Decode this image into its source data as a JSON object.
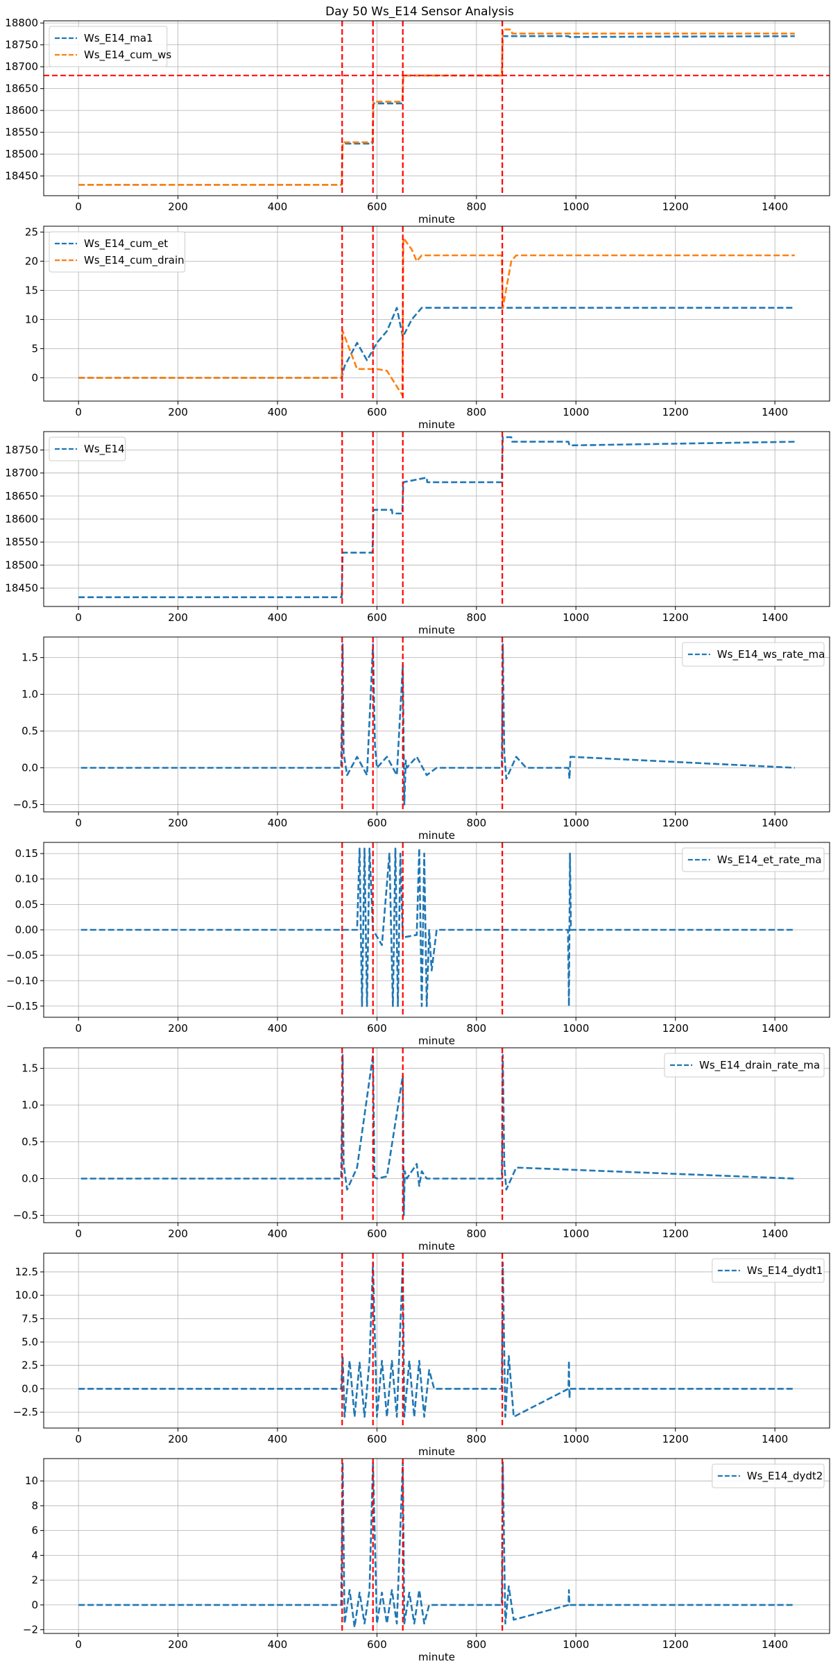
{
  "title": "Day 50 Ws_E14 Sensor Analysis",
  "colors": {
    "blue": "#1f77b4",
    "orange": "#ff7f0e",
    "red": "#ff0000",
    "grid": "#b0b0b0"
  },
  "chart_data": [
    {
      "type": "line",
      "xlabel": "minute",
      "xlim": [
        -70,
        1510
      ],
      "ylim": [
        18405,
        18805
      ],
      "xticks": [
        0,
        200,
        400,
        600,
        800,
        1000,
        1200,
        1400
      ],
      "yticks": [
        18450,
        18500,
        18550,
        18600,
        18650,
        18700,
        18750,
        18800
      ],
      "legend_position": "top-left",
      "vlines": [
        530,
        592,
        652,
        852
      ],
      "hline": 18680,
      "series": [
        {
          "name": "Ws_E14_ma1",
          "color": "blue",
          "style": "dashed",
          "x": [
            0,
            529,
            531,
            591,
            593,
            651,
            653,
            851,
            853,
            985,
            987,
            1440
          ],
          "y": [
            18430,
            18430,
            18524,
            18524,
            18616,
            18616,
            18680,
            18680,
            18770,
            18770,
            18768,
            18770
          ]
        },
        {
          "name": "Ws_E14_cum_ws",
          "color": "orange",
          "style": "dashed",
          "x": [
            0,
            529,
            531,
            591,
            593,
            651,
            653,
            851,
            853,
            870,
            872,
            1440
          ],
          "y": [
            18430,
            18430,
            18527,
            18527,
            18620,
            18620,
            18680,
            18680,
            18785,
            18785,
            18776,
            18776
          ]
        }
      ]
    },
    {
      "type": "line",
      "xlabel": "minute",
      "xlim": [
        -70,
        1510
      ],
      "ylim": [
        -4,
        26
      ],
      "xticks": [
        0,
        200,
        400,
        600,
        800,
        1000,
        1200,
        1400
      ],
      "yticks": [
        0,
        5,
        10,
        15,
        20,
        25
      ],
      "legend_position": "top-left",
      "vlines": [
        530,
        592,
        652,
        852
      ],
      "series": [
        {
          "name": "Ws_E14_cum_et",
          "color": "blue",
          "style": "dashed",
          "x": [
            0,
            529,
            535,
            560,
            580,
            600,
            620,
            640,
            652,
            670,
            690,
            700,
            720,
            850,
            860,
            985,
            990,
            1440
          ],
          "y": [
            0,
            0,
            2,
            6,
            3,
            6,
            8,
            12,
            7,
            10,
            12,
            12,
            12,
            12,
            12,
            12,
            12,
            12
          ]
        },
        {
          "name": "Ws_E14_cum_drain",
          "color": "orange",
          "style": "dashed",
          "x": [
            0,
            529,
            531,
            560,
            591,
            600,
            620,
            651,
            653,
            670,
            680,
            690,
            720,
            851,
            853,
            870,
            880,
            1440
          ],
          "y": [
            0,
            0,
            8,
            1.5,
            1.5,
            1.5,
            1.2,
            -3,
            24,
            22,
            20,
            21,
            21,
            21,
            12,
            20,
            21,
            21
          ]
        }
      ]
    },
    {
      "type": "line",
      "xlabel": "minute",
      "xlim": [
        -70,
        1510
      ],
      "ylim": [
        18410,
        18790
      ],
      "xticks": [
        0,
        200,
        400,
        600,
        800,
        1000,
        1200,
        1400
      ],
      "yticks": [
        18450,
        18500,
        18550,
        18600,
        18650,
        18700,
        18750
      ],
      "legend_position": "top-left",
      "vlines": [
        530,
        592,
        652,
        852
      ],
      "series": [
        {
          "name": "Ws_E14",
          "color": "blue",
          "style": "dashed",
          "x": [
            0,
            529,
            531,
            591,
            593,
            630,
            631,
            651,
            653,
            700,
            701,
            851,
            853,
            870,
            872,
            985,
            987,
            1440
          ],
          "y": [
            18430,
            18430,
            18527,
            18527,
            18620,
            18620,
            18612,
            18612,
            18680,
            18690,
            18680,
            18680,
            18778,
            18778,
            18768,
            18768,
            18760,
            18768
          ]
        }
      ]
    },
    {
      "type": "line",
      "xlabel": "minute",
      "xlim": [
        -70,
        1510
      ],
      "ylim": [
        -0.6,
        1.78
      ],
      "xticks": [
        0,
        200,
        400,
        600,
        800,
        1000,
        1200,
        1400
      ],
      "yticks": [
        -0.5,
        0.0,
        0.5,
        1.0,
        1.5
      ],
      "legend_position": "top-right",
      "vlines": [
        530,
        592,
        652,
        852
      ],
      "series": [
        {
          "name": "Ws_E14_ws_rate_ma",
          "color": "blue",
          "style": "dashed",
          "x": [
            5,
            528,
            531,
            533,
            540,
            560,
            580,
            592,
            596,
            600,
            620,
            640,
            652,
            655,
            658,
            660,
            680,
            700,
            720,
            851,
            853,
            856,
            860,
            880,
            900,
            985,
            987,
            989,
            1440
          ],
          "y": [
            0,
            0,
            1.68,
            0.2,
            -0.1,
            0.15,
            -0.1,
            1.68,
            0.3,
            0,
            0.15,
            -0.1,
            1.4,
            -0.5,
            0.1,
            0,
            0.15,
            -0.1,
            0,
            0,
            1.68,
            0.2,
            -0.15,
            0.15,
            0,
            0,
            -0.15,
            0.15,
            0
          ]
        }
      ]
    },
    {
      "type": "line",
      "xlabel": "minute",
      "xlim": [
        -70,
        1510
      ],
      "ylim": [
        -0.172,
        0.172
      ],
      "xticks": [
        0,
        200,
        400,
        600,
        800,
        1000,
        1200,
        1400
      ],
      "yticks": [
        -0.15,
        -0.1,
        -0.05,
        0.0,
        0.05,
        0.1,
        0.15
      ],
      "legend_position": "top-right",
      "vlines": [
        530,
        592,
        652,
        852
      ],
      "series": [
        {
          "name": "Ws_E14_et_rate_ma",
          "color": "blue",
          "style": "dashed",
          "x": [
            5,
            560,
            565,
            570,
            575,
            580,
            585,
            592,
            610,
            625,
            632,
            637,
            642,
            647,
            652,
            680,
            685,
            690,
            695,
            700,
            705,
            710,
            720,
            984,
            986,
            988,
            990,
            1440
          ],
          "y": [
            0,
            0,
            0.16,
            -0.15,
            0.16,
            -0.15,
            0.16,
            0,
            -0.03,
            0.15,
            -0.15,
            0.16,
            -0.15,
            0.15,
            -0.015,
            -0.01,
            0.16,
            -0.15,
            0.15,
            -0.15,
            0,
            -0.08,
            0,
            0,
            -0.15,
            0.15,
            0,
            0
          ]
        }
      ]
    },
    {
      "type": "line",
      "xlabel": "minute",
      "xlim": [
        -70,
        1510
      ],
      "ylim": [
        -0.6,
        1.78
      ],
      "xticks": [
        0,
        200,
        400,
        600,
        800,
        1000,
        1200,
        1400
      ],
      "yticks": [
        -0.5,
        0.0,
        0.5,
        1.0,
        1.5
      ],
      "legend_position": "top-right",
      "vlines": [
        530,
        592,
        652,
        852
      ],
      "series": [
        {
          "name": "Ws_E14_drain_rate_ma",
          "color": "blue",
          "style": "dashed",
          "x": [
            5,
            528,
            531,
            533,
            540,
            560,
            592,
            595,
            600,
            620,
            652,
            654,
            656,
            660,
            680,
            685,
            690,
            700,
            851,
            853,
            856,
            860,
            880,
            1440
          ],
          "y": [
            0,
            0,
            1.68,
            0.2,
            -0.15,
            0.15,
            1.68,
            0.02,
            0,
            0.03,
            1.4,
            -0.5,
            0.1,
            0,
            0.2,
            -0.1,
            0.1,
            0,
            0,
            1.68,
            0.2,
            -0.15,
            0.15,
            0
          ]
        }
      ]
    },
    {
      "type": "line",
      "xlabel": "minute",
      "xlim": [
        -70,
        1510
      ],
      "ylim": [
        -4.2,
        14.5
      ],
      "xticks": [
        0,
        200,
        400,
        600,
        800,
        1000,
        1200,
        1400
      ],
      "yticks": [
        -2.5,
        0.0,
        2.5,
        5.0,
        7.5,
        10.0,
        12.5
      ],
      "legend_position": "top-right",
      "vlines": [
        530,
        592,
        652,
        852
      ],
      "series": [
        {
          "name": "Ws_E14_dydt1",
          "color": "blue",
          "style": "dashed",
          "x": [
            0,
            528,
            531,
            535,
            545,
            555,
            565,
            575,
            585,
            592,
            600,
            610,
            620,
            630,
            640,
            652,
            655,
            665,
            675,
            685,
            695,
            705,
            715,
            851,
            853,
            858,
            865,
            875,
            985,
            986,
            987,
            988,
            1440
          ],
          "y": [
            0,
            0,
            3.5,
            -3,
            3,
            -3,
            2.8,
            -3,
            3,
            13.5,
            -3,
            3,
            -3,
            3,
            -3,
            13.5,
            -3,
            3,
            -3,
            3,
            -3,
            2,
            0,
            0,
            13.5,
            -3,
            3.5,
            -3,
            0,
            3,
            -1,
            0,
            0
          ]
        }
      ]
    },
    {
      "type": "line",
      "xlabel": "minute",
      "xlim": [
        -70,
        1510
      ],
      "ylim": [
        -2.3,
        11.8
      ],
      "xticks": [
        0,
        200,
        400,
        600,
        800,
        1000,
        1200,
        1400
      ],
      "yticks": [
        -2,
        0,
        2,
        4,
        6,
        8,
        10
      ],
      "legend_position": "top-right",
      "vlines": [
        530,
        592,
        652,
        852
      ],
      "series": [
        {
          "name": "Ws_E14_dydt2",
          "color": "blue",
          "style": "dashed",
          "x": [
            0,
            528,
            531,
            535,
            545,
            555,
            565,
            575,
            585,
            592,
            600,
            610,
            620,
            630,
            640,
            652,
            655,
            665,
            675,
            685,
            695,
            705,
            851,
            853,
            858,
            865,
            875,
            985,
            986,
            987,
            1440
          ],
          "y": [
            0,
            0,
            11.5,
            -1.5,
            1.2,
            -1.8,
            1,
            -1.5,
            1.2,
            11.5,
            -1.5,
            1,
            -1.5,
            1.2,
            -1.5,
            11.5,
            -1.5,
            1,
            -1.5,
            1.2,
            -1.5,
            0,
            0,
            11.5,
            -1.5,
            1.5,
            -1.2,
            0,
            1.2,
            0,
            0
          ]
        }
      ]
    }
  ]
}
